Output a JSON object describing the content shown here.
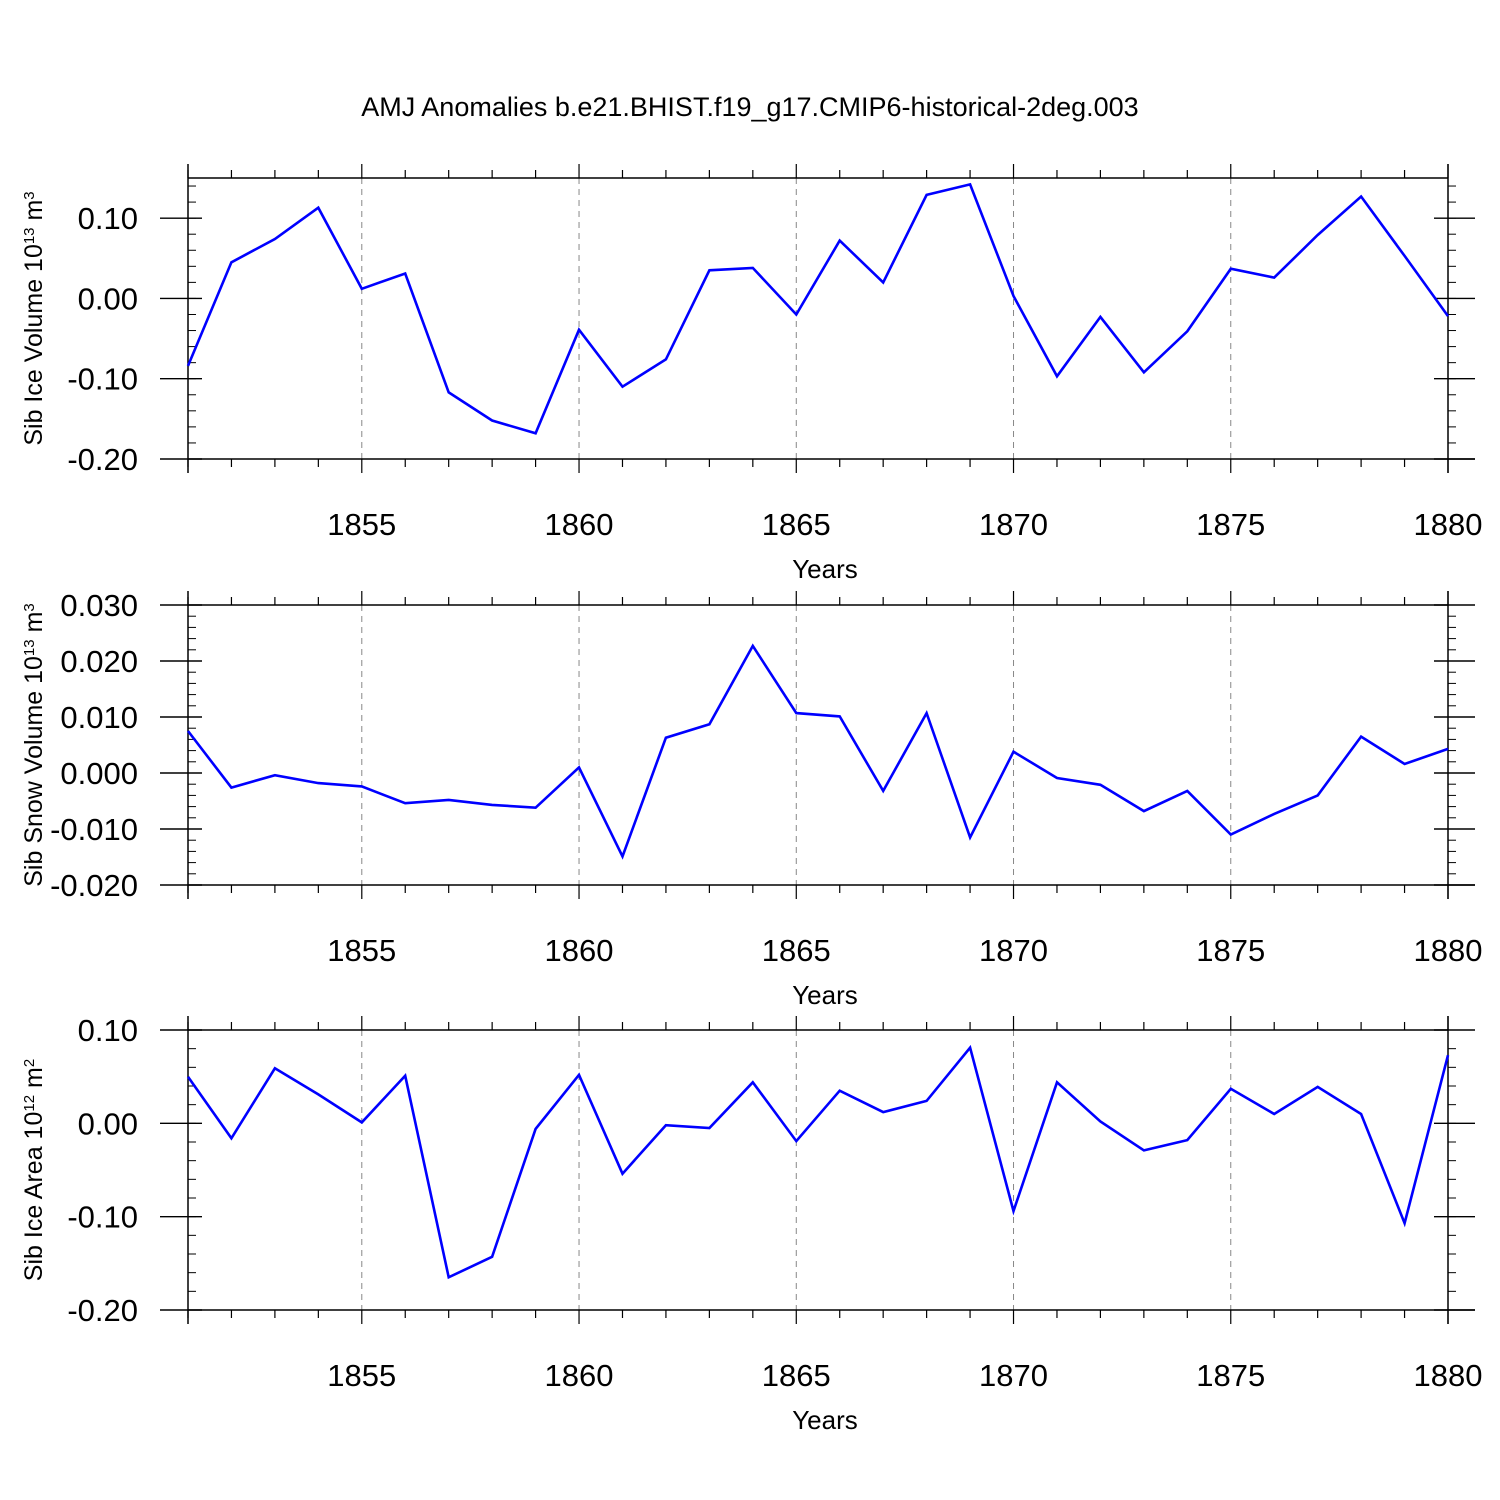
{
  "figure_title": "AMJ Anomalies b.e21.BHIST.f19_g17.CMIP6-historical-2deg.003",
  "colors": {
    "line": "#0000ff",
    "axis": "#000000",
    "grid": "#888888",
    "background": "#ffffff"
  },
  "chart_data": [
    {
      "type": "line",
      "title": "",
      "xlabel": "Years",
      "ylabel": {
        "base": "Sib Ice Volume 10",
        "exponent": "13",
        "unit": " m",
        "unit_exponent": "3"
      },
      "xlim": [
        1851,
        1880
      ],
      "ylim": [
        -0.2,
        0.15
      ],
      "x_ticks": [
        1855,
        1860,
        1865,
        1870,
        1875,
        1880
      ],
      "y_ticks": [
        -0.2,
        -0.1,
        0.0,
        0.1
      ],
      "y_tick_labels": [
        "-0.20",
        "-0.10",
        "0.00",
        "0.10"
      ],
      "y_minor_step": 0.02,
      "vertical_grid": "dashed at major x ticks",
      "legend": "none",
      "series": [
        {
          "x": [
            1851,
            1852,
            1853,
            1854,
            1855,
            1856,
            1857,
            1858,
            1859,
            1860,
            1861,
            1862,
            1863,
            1864,
            1865,
            1866,
            1867,
            1868,
            1869,
            1870,
            1871,
            1872,
            1873,
            1874,
            1875,
            1876,
            1877,
            1878,
            1879,
            1880
          ],
          "values": [
            -0.084,
            0.045,
            0.074,
            0.113,
            0.012,
            0.031,
            -0.117,
            -0.152,
            -0.168,
            -0.039,
            -0.11,
            -0.076,
            0.035,
            0.038,
            -0.02,
            0.072,
            0.02,
            0.129,
            0.142,
            0.003,
            -0.097,
            -0.023,
            -0.092,
            -0.041,
            0.037,
            0.026,
            0.079,
            0.127,
            0.053,
            -0.022
          ]
        }
      ]
    },
    {
      "type": "line",
      "title": "",
      "xlabel": "Years",
      "ylabel": {
        "base": "Sib Snow Volume 10",
        "exponent": "13",
        "unit": " m",
        "unit_exponent": "3"
      },
      "xlim": [
        1851,
        1880
      ],
      "ylim": [
        -0.02,
        0.03
      ],
      "x_ticks": [
        1855,
        1860,
        1865,
        1870,
        1875,
        1880
      ],
      "y_ticks": [
        -0.02,
        -0.01,
        0.0,
        0.01,
        0.02,
        0.03
      ],
      "y_tick_labels": [
        "-0.020",
        "-0.010",
        "0.000",
        "0.010",
        "0.020",
        "0.030"
      ],
      "y_minor_step": 0.002,
      "vertical_grid": "dashed at major x ticks",
      "legend": "none",
      "series": [
        {
          "x": [
            1851,
            1852,
            1853,
            1854,
            1855,
            1856,
            1857,
            1858,
            1859,
            1860,
            1861,
            1862,
            1863,
            1864,
            1865,
            1866,
            1867,
            1868,
            1869,
            1870,
            1871,
            1872,
            1873,
            1874,
            1875,
            1876,
            1877,
            1878,
            1879,
            1880
          ],
          "values": [
            0.0075,
            -0.0026,
            -0.0004,
            -0.0018,
            -0.0024,
            -0.0054,
            -0.0048,
            -0.0057,
            -0.0062,
            0.001,
            -0.0149,
            0.0063,
            0.0087,
            0.0227,
            0.0107,
            0.0101,
            -0.0032,
            0.0107,
            -0.0115,
            0.0038,
            -0.0009,
            -0.0021,
            -0.0068,
            -0.0032,
            -0.011,
            -0.0073,
            -0.004,
            0.0065,
            0.0016,
            0.0043
          ]
        }
      ]
    },
    {
      "type": "line",
      "title": "",
      "xlabel": "Years",
      "ylabel": {
        "base": "Sib Ice Area 10",
        "exponent": "12",
        "unit": " m",
        "unit_exponent": "2"
      },
      "xlim": [
        1851,
        1880
      ],
      "ylim": [
        -0.2,
        0.1
      ],
      "x_ticks": [
        1855,
        1860,
        1865,
        1870,
        1875,
        1880
      ],
      "y_ticks": [
        -0.2,
        -0.1,
        0.0,
        0.1
      ],
      "y_tick_labels": [
        "-0.20",
        "-0.10",
        "0.00",
        "0.10"
      ],
      "y_minor_step": 0.02,
      "vertical_grid": "dashed at major x ticks",
      "legend": "none",
      "series": [
        {
          "x": [
            1851,
            1852,
            1853,
            1854,
            1855,
            1856,
            1857,
            1858,
            1859,
            1860,
            1861,
            1862,
            1863,
            1864,
            1865,
            1866,
            1867,
            1868,
            1869,
            1870,
            1871,
            1872,
            1873,
            1874,
            1875,
            1876,
            1877,
            1878,
            1879,
            1880
          ],
          "values": [
            0.05,
            -0.016,
            0.059,
            0.031,
            0.001,
            0.051,
            -0.165,
            -0.143,
            -0.006,
            0.052,
            -0.054,
            -0.002,
            -0.005,
            0.044,
            -0.019,
            0.035,
            0.012,
            0.024,
            0.081,
            -0.094,
            0.044,
            0.002,
            -0.029,
            -0.018,
            0.037,
            0.01,
            0.039,
            0.01,
            -0.107,
            0.073
          ]
        }
      ]
    }
  ]
}
